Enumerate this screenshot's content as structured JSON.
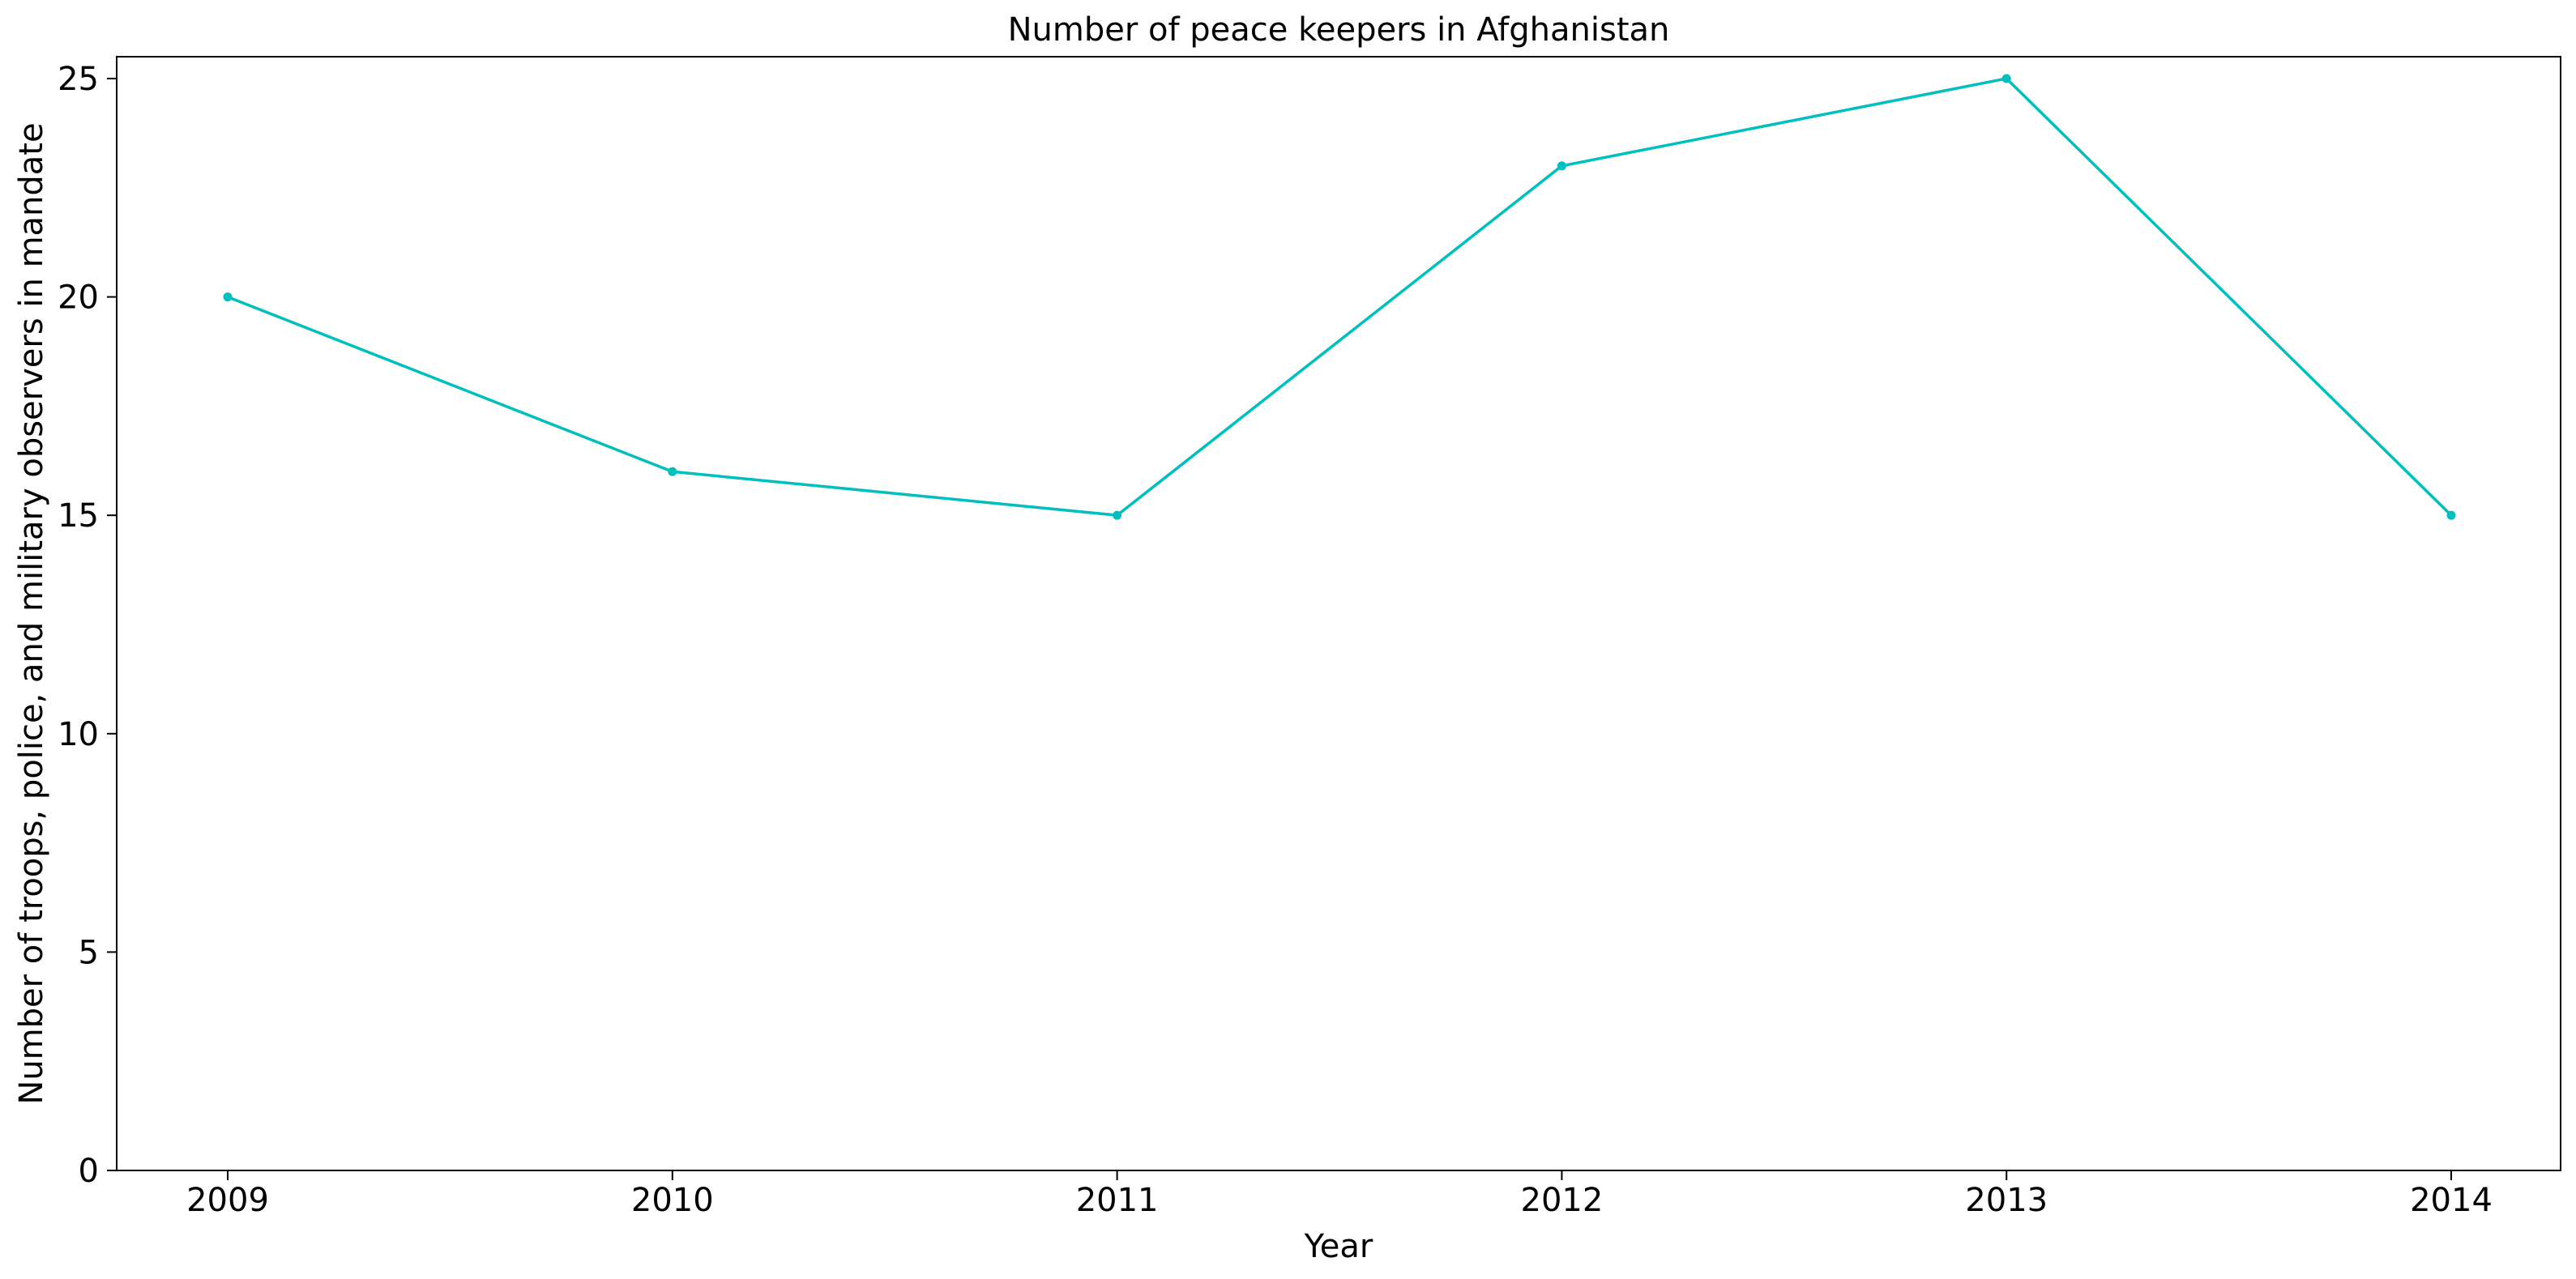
{
  "chart_data": {
    "type": "line",
    "title": "Number of peace keepers in Afghanistan",
    "xlabel": "Year",
    "ylabel": "Number of troops, police, and military observers in mandate",
    "categories": [
      "2009",
      "2010",
      "2011",
      "2012",
      "2013",
      "2014"
    ],
    "series": [
      {
        "values": [
          20,
          16,
          15,
          23,
          25,
          15
        ],
        "color": "#00bfbf",
        "marker": "circle"
      }
    ],
    "ylim": [
      0,
      25.5
    ],
    "yticks": [
      0,
      5,
      10,
      15,
      20,
      25
    ],
    "grid": false,
    "legend": "none"
  }
}
